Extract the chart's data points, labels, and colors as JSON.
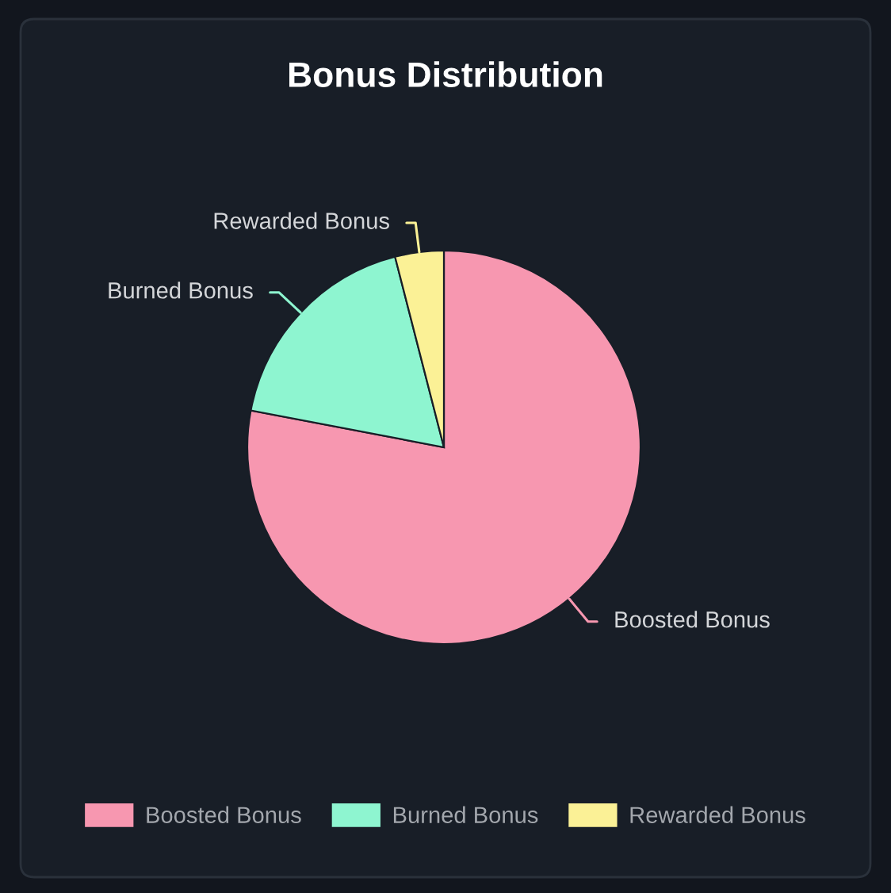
{
  "chart_data": {
    "type": "pie",
    "title": "Bonus Distribution",
    "categories": [
      "Boosted Bonus",
      "Burned Bonus",
      "Rewarded Bonus"
    ],
    "values": [
      78,
      18,
      4
    ],
    "colors": [
      "#f797b0",
      "#8ef5d0",
      "#fbf196"
    ],
    "legend": "bottom"
  }
}
